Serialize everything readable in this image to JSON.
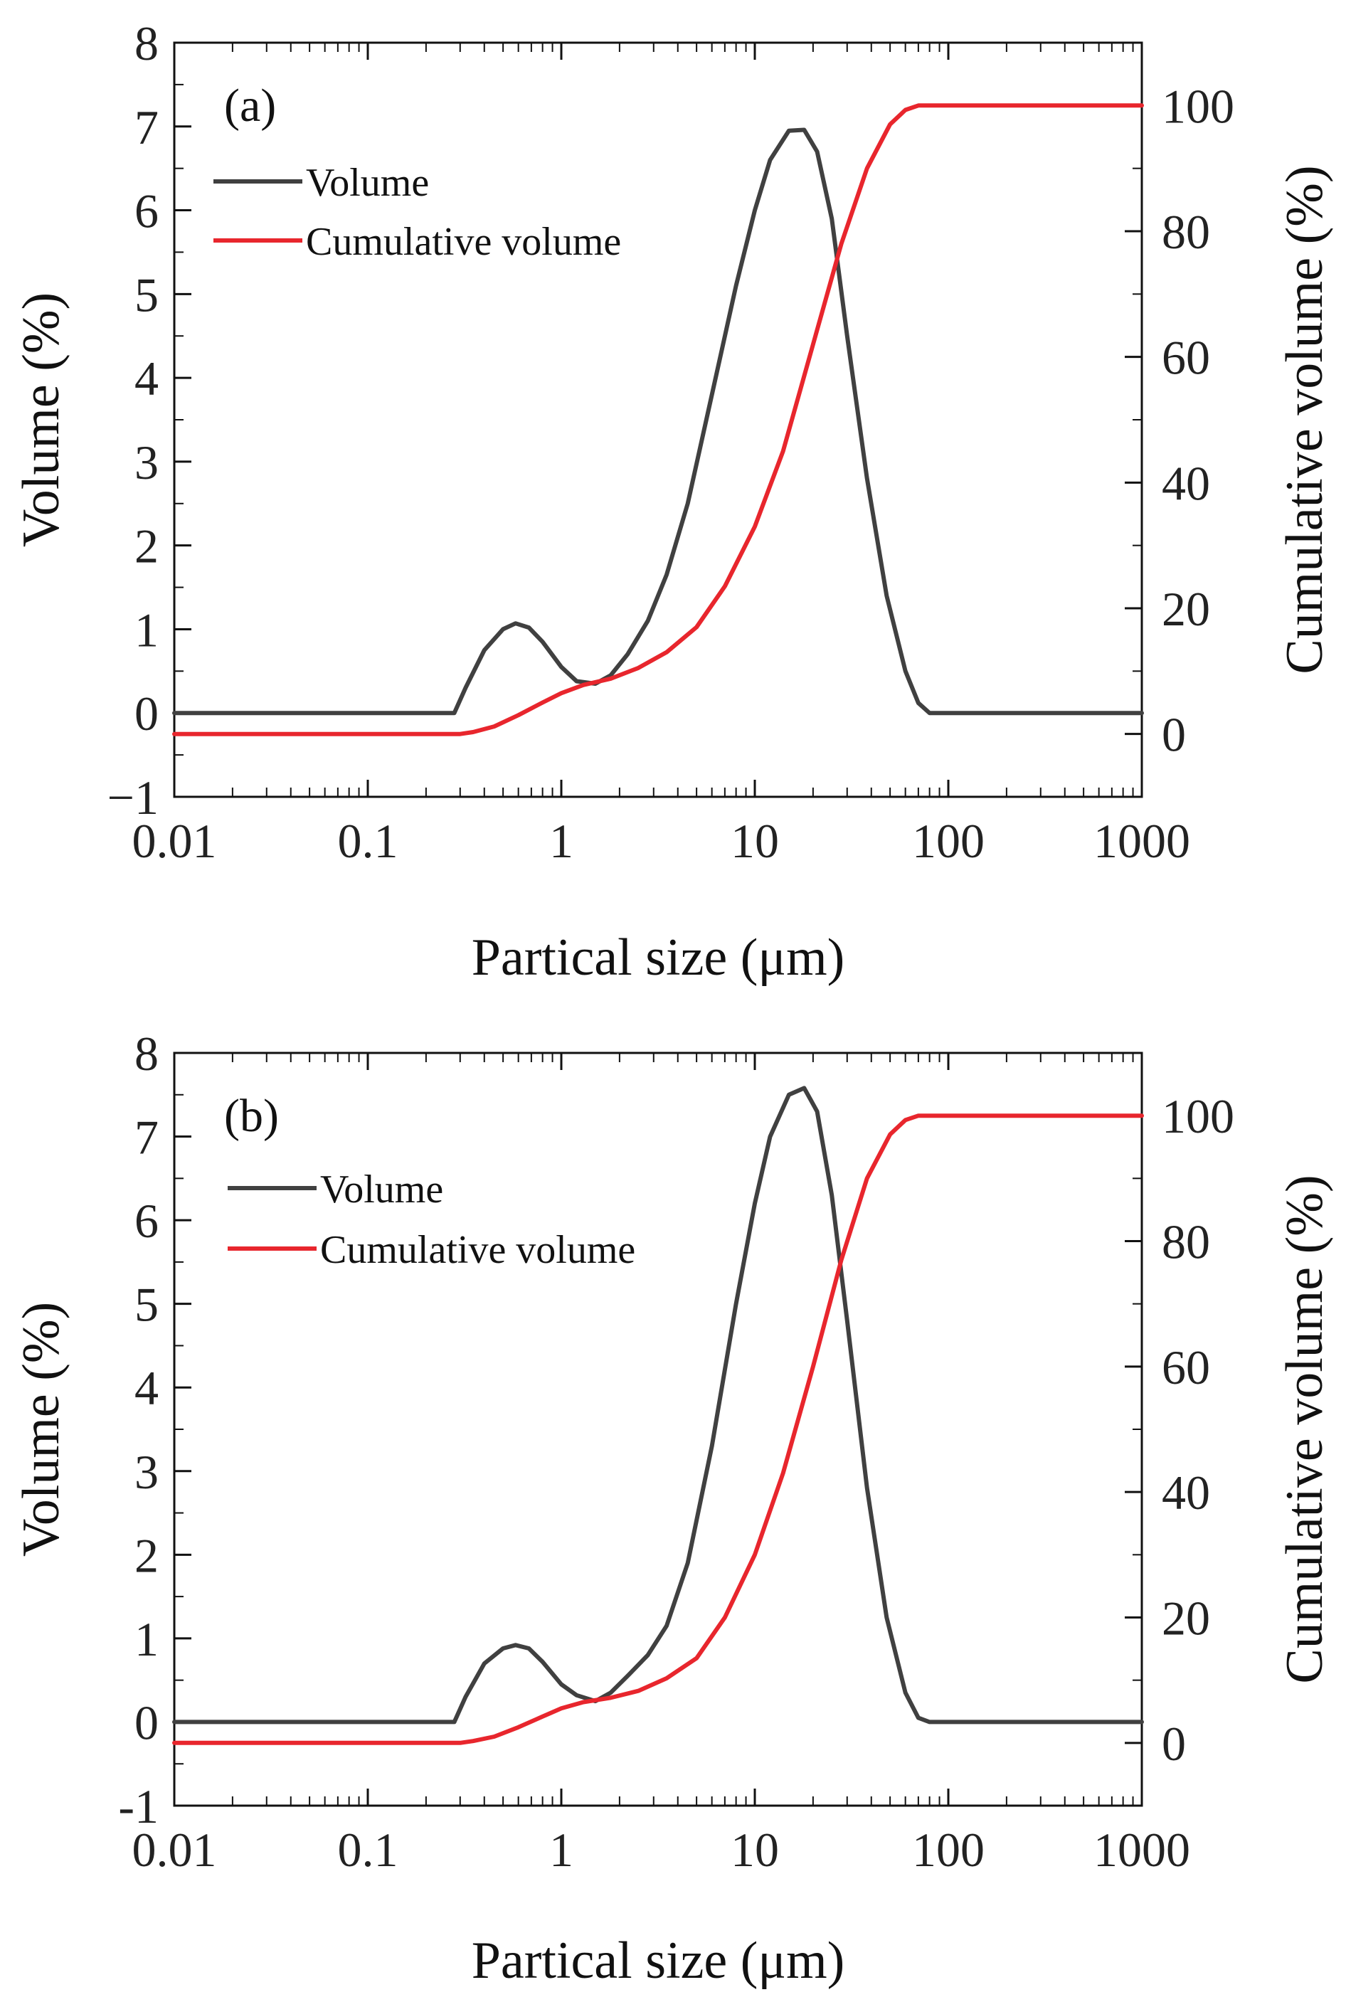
{
  "figure": {
    "panels": [
      "panel_a",
      "panel_b"
    ]
  },
  "chart_data": [
    {
      "type": "line",
      "panel_label": "(a)",
      "xlabel": "Partical size (μm)",
      "ylabel_left": "Volume (%)",
      "ylabel_right": "Cumulative volume (%)",
      "xscale": "log",
      "xlim": [
        0.01,
        1000
      ],
      "ylim_left": [
        -1,
        8
      ],
      "ylim_right": [
        -10,
        110
      ],
      "x_ticks": [
        0.01,
        0.1,
        1,
        10,
        100,
        1000
      ],
      "x_tick_labels": [
        "0.01",
        "0.1",
        "1",
        "10",
        "100",
        "1000"
      ],
      "y_left_ticks": [
        -1,
        0,
        1,
        2,
        3,
        4,
        5,
        6,
        7,
        8
      ],
      "y_left_tick_labels": [
        "−1",
        "0",
        "1",
        "2",
        "3",
        "4",
        "5",
        "6",
        "7",
        "8"
      ],
      "y_right_ticks": [
        0,
        20,
        40,
        60,
        80,
        100
      ],
      "y_right_tick_labels": [
        "0",
        "20",
        "40",
        "60",
        "80",
        "100"
      ],
      "legend": {
        "placement": "top-left",
        "entries": [
          "Volume",
          "Cumulative volume"
        ]
      },
      "series": [
        {
          "name": "Volume",
          "axis": "left",
          "color": "#404040",
          "x": [
            0.01,
            0.28,
            0.32,
            0.4,
            0.5,
            0.58,
            0.68,
            0.8,
            1.0,
            1.2,
            1.5,
            1.8,
            2.2,
            2.8,
            3.5,
            4.5,
            6,
            8,
            10,
            12,
            15,
            18,
            21,
            25,
            30,
            38,
            48,
            60,
            70,
            80,
            1000
          ],
          "values": [
            0,
            0,
            0.3,
            0.75,
            1.0,
            1.07,
            1.02,
            0.85,
            0.55,
            0.38,
            0.35,
            0.45,
            0.7,
            1.1,
            1.65,
            2.5,
            3.8,
            5.1,
            6.0,
            6.6,
            6.95,
            6.96,
            6.7,
            5.9,
            4.5,
            2.8,
            1.4,
            0.5,
            0.12,
            0,
            0
          ]
        },
        {
          "name": "Cumulative volume",
          "axis": "right",
          "color": "#e8262d",
          "x": [
            0.01,
            0.3,
            0.35,
            0.45,
            0.6,
            0.8,
            1.0,
            1.3,
            1.8,
            2.5,
            3.5,
            5,
            7,
            10,
            14,
            20,
            28,
            38,
            50,
            60,
            70,
            80,
            1000
          ],
          "values": [
            0,
            0,
            0.3,
            1.2,
            3,
            5,
            6.5,
            7.8,
            8.8,
            10.5,
            13,
            17,
            23.5,
            33,
            45,
            62,
            78,
            90,
            97,
            99.3,
            100,
            100,
            100
          ]
        }
      ]
    },
    {
      "type": "line",
      "panel_label": "(b)",
      "xlabel": "Partical size (μm)",
      "ylabel_left": "Volume (%)",
      "ylabel_right": "Cumulative volume (%)",
      "xscale": "log",
      "xlim": [
        0.01,
        1000
      ],
      "ylim_left": [
        -1,
        8
      ],
      "ylim_right": [
        -10,
        110
      ],
      "x_ticks": [
        0.01,
        0.1,
        1,
        10,
        100,
        1000
      ],
      "x_tick_labels": [
        "0.01",
        "0.1",
        "1",
        "10",
        "100",
        "1000"
      ],
      "y_left_ticks": [
        -1,
        0,
        1,
        2,
        3,
        4,
        5,
        6,
        7,
        8
      ],
      "y_left_tick_labels": [
        "-1",
        "0",
        "1",
        "2",
        "3",
        "4",
        "5",
        "6",
        "7",
        "8"
      ],
      "y_right_ticks": [
        0,
        20,
        40,
        60,
        80,
        100
      ],
      "y_right_tick_labels": [
        "0",
        "20",
        "40",
        "60",
        "80",
        "100"
      ],
      "legend": {
        "placement": "top-left",
        "entries": [
          "Volume",
          "Cumulative volume"
        ]
      },
      "series": [
        {
          "name": "Volume",
          "axis": "left",
          "color": "#404040",
          "x": [
            0.01,
            0.28,
            0.32,
            0.4,
            0.5,
            0.58,
            0.68,
            0.8,
            1.0,
            1.2,
            1.5,
            1.8,
            2.2,
            2.8,
            3.5,
            4.5,
            6,
            8,
            10,
            12,
            15,
            18,
            21,
            25,
            30,
            38,
            48,
            60,
            70,
            80,
            1000
          ],
          "values": [
            0,
            0,
            0.3,
            0.7,
            0.88,
            0.92,
            0.88,
            0.72,
            0.45,
            0.32,
            0.25,
            0.35,
            0.55,
            0.8,
            1.15,
            1.9,
            3.3,
            5.0,
            6.2,
            7.0,
            7.5,
            7.58,
            7.3,
            6.3,
            4.8,
            2.8,
            1.25,
            0.35,
            0.05,
            0,
            0
          ]
        },
        {
          "name": "Cumulative volume",
          "axis": "right",
          "color": "#e8262d",
          "x": [
            0.01,
            0.3,
            0.35,
            0.45,
            0.6,
            0.8,
            1.0,
            1.3,
            1.8,
            2.5,
            3.5,
            5,
            7,
            10,
            14,
            20,
            28,
            38,
            50,
            60,
            70,
            80,
            1000
          ],
          "values": [
            0,
            0,
            0.3,
            1.0,
            2.5,
            4.2,
            5.5,
            6.5,
            7.2,
            8.3,
            10.3,
            13.5,
            20,
            30,
            43,
            60,
            77,
            90,
            97,
            99.3,
            100,
            100,
            100
          ]
        }
      ]
    }
  ]
}
